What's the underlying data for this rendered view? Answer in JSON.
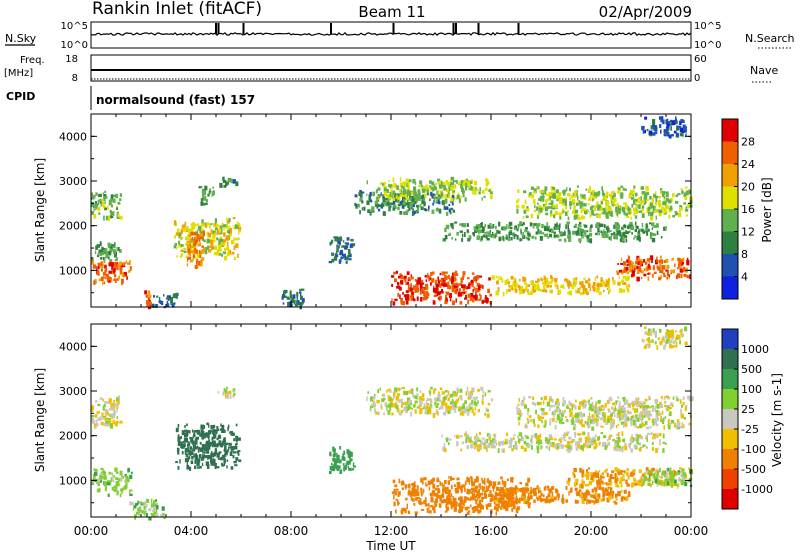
{
  "header": {
    "station": "Rankin Inlet (fitACF)",
    "beam": "Beam 11",
    "date": "02/Apr/2009"
  },
  "strip_labels": {
    "nsky": "N.Sky",
    "nsearch": "N.Search",
    "freq_1": "Freq.",
    "freq_2": "[MHz]",
    "nave": "Nave",
    "cpid": "CPID",
    "noise_left_ticks": [
      "10^5",
      "10^0"
    ],
    "noise_right_ticks": [
      "10^5",
      "10^0"
    ],
    "freq_ticks": [
      "18",
      "8"
    ],
    "nave_ticks": [
      "60",
      "0"
    ],
    "program": "normalsound (fast) 157"
  },
  "x_axis": {
    "label": "Time UT",
    "ticks": [
      "00:00",
      "04:00",
      "08:00",
      "12:00",
      "16:00",
      "20:00",
      "00:00"
    ]
  },
  "colors": {
    "power_scale": [
      "#1020e0",
      "#2050b0",
      "#2e8040",
      "#60b050",
      "#e0e000",
      "#f0a000",
      "#f06000",
      "#e00000"
    ],
    "velocity_scale": [
      "#2040c0",
      "#2e7050",
      "#3aa050",
      "#80d030",
      "#c8c8c0",
      "#f0c000",
      "#f08000",
      "#f04000",
      "#e00000"
    ]
  },
  "chart_data": [
    {
      "type": "heatmap",
      "panel": "power",
      "ylabel": "Slant Range [km]",
      "y_ticks": [
        "1000",
        "2000",
        "3000",
        "4000"
      ],
      "ylim": [
        180,
        4500
      ],
      "xlim_hours": [
        0,
        24
      ],
      "colorbar_label": "Power [dB]",
      "colorbar_ticks": [
        "4",
        "8",
        "12",
        "16",
        "20",
        "24",
        "28"
      ],
      "colorbar_range": [
        0,
        32
      ],
      "regions": [
        {
          "t": [
            0.0,
            1.6
          ],
          "r": [
            750,
            1250
          ],
          "value": 26
        },
        {
          "t": [
            0.0,
            1.2
          ],
          "r": [
            1250,
            1650
          ],
          "value": 12
        },
        {
          "t": [
            0.0,
            1.2
          ],
          "r": [
            2200,
            2800
          ],
          "value": 14
        },
        {
          "t": [
            2.1,
            2.4
          ],
          "r": [
            180,
            600
          ],
          "value": 26
        },
        {
          "t": [
            2.4,
            3.4
          ],
          "r": [
            180,
            500
          ],
          "value": 8
        },
        {
          "t": [
            3.3,
            5.9
          ],
          "r": [
            1300,
            2200
          ],
          "value": 18
        },
        {
          "t": [
            3.8,
            4.5
          ],
          "r": [
            1100,
            1900
          ],
          "value": 24
        },
        {
          "t": [
            4.3,
            5.0
          ],
          "r": [
            2500,
            2900
          ],
          "value": 12
        },
        {
          "t": [
            5.1,
            5.9
          ],
          "r": [
            2900,
            3100
          ],
          "value": 10
        },
        {
          "t": [
            7.5,
            8.5
          ],
          "r": [
            200,
            600
          ],
          "value": 8
        },
        {
          "t": [
            9.5,
            10.5
          ],
          "r": [
            1200,
            1800
          ],
          "value": 8
        },
        {
          "t": [
            10.5,
            14.5
          ],
          "r": [
            2300,
            2800
          ],
          "value": 10
        },
        {
          "t": [
            11.0,
            16.0
          ],
          "r": [
            2600,
            3100
          ],
          "value": 16
        },
        {
          "t": [
            12.0,
            16.0
          ],
          "r": [
            300,
            1000
          ],
          "value": 28
        },
        {
          "t": [
            16.0,
            21.5
          ],
          "r": [
            500,
            900
          ],
          "value": 20
        },
        {
          "t": [
            14.0,
            23.0
          ],
          "r": [
            1700,
            2100
          ],
          "value": 12
        },
        {
          "t": [
            17.0,
            24.0
          ],
          "r": [
            2200,
            2900
          ],
          "value": 16
        },
        {
          "t": [
            21.0,
            24.0
          ],
          "r": [
            850,
            1350
          ],
          "value": 26
        },
        {
          "t": [
            22.0,
            23.8
          ],
          "r": [
            4000,
            4450
          ],
          "value": 6
        }
      ]
    },
    {
      "type": "heatmap",
      "panel": "velocity",
      "ylabel": "Slant Range [km]",
      "y_ticks": [
        "1000",
        "2000",
        "3000",
        "4000"
      ],
      "ylim": [
        180,
        4500
      ],
      "xlim_hours": [
        0,
        24
      ],
      "colorbar_label": "Velocity [m s-1]",
      "colorbar_ticks": [
        "1000",
        "500",
        "100",
        "25",
        "-25",
        "-100",
        "-500",
        "-1000"
      ],
      "colorbar_range": [
        -1000,
        1000
      ],
      "regions": [
        {
          "t": [
            0.0,
            1.6
          ],
          "r": [
            700,
            1300
          ],
          "value": 60
        },
        {
          "t": [
            0.0,
            1.2
          ],
          "r": [
            2200,
            2900
          ],
          "value": 0
        },
        {
          "t": [
            1.5,
            3.0
          ],
          "r": [
            180,
            600
          ],
          "value": 60
        },
        {
          "t": [
            3.3,
            5.9
          ],
          "r": [
            1300,
            2300
          ],
          "value": 700
        },
        {
          "t": [
            5.0,
            5.9
          ],
          "r": [
            2900,
            3100
          ],
          "value": 0
        },
        {
          "t": [
            9.5,
            10.5
          ],
          "r": [
            1200,
            1800
          ],
          "value": 200
        },
        {
          "t": [
            11.0,
            16.0
          ],
          "r": [
            2500,
            3100
          ],
          "value": 0
        },
        {
          "t": [
            12.0,
            17.5
          ],
          "r": [
            300,
            1100
          ],
          "value": -300
        },
        {
          "t": [
            16.0,
            21.5
          ],
          "r": [
            500,
            900
          ],
          "value": -150
        },
        {
          "t": [
            19.0,
            24.0
          ],
          "r": [
            900,
            1300
          ],
          "value": -100
        },
        {
          "t": [
            22.0,
            24.0
          ],
          "r": [
            900,
            1300
          ],
          "value": 60
        },
        {
          "t": [
            14.0,
            23.0
          ],
          "r": [
            1700,
            2100
          ],
          "value": 0
        },
        {
          "t": [
            17.0,
            24.0
          ],
          "r": [
            2200,
            2900
          ],
          "value": 0
        },
        {
          "t": [
            22.0,
            23.8
          ],
          "r": [
            4000,
            4450
          ],
          "value": 0
        }
      ]
    }
  ]
}
